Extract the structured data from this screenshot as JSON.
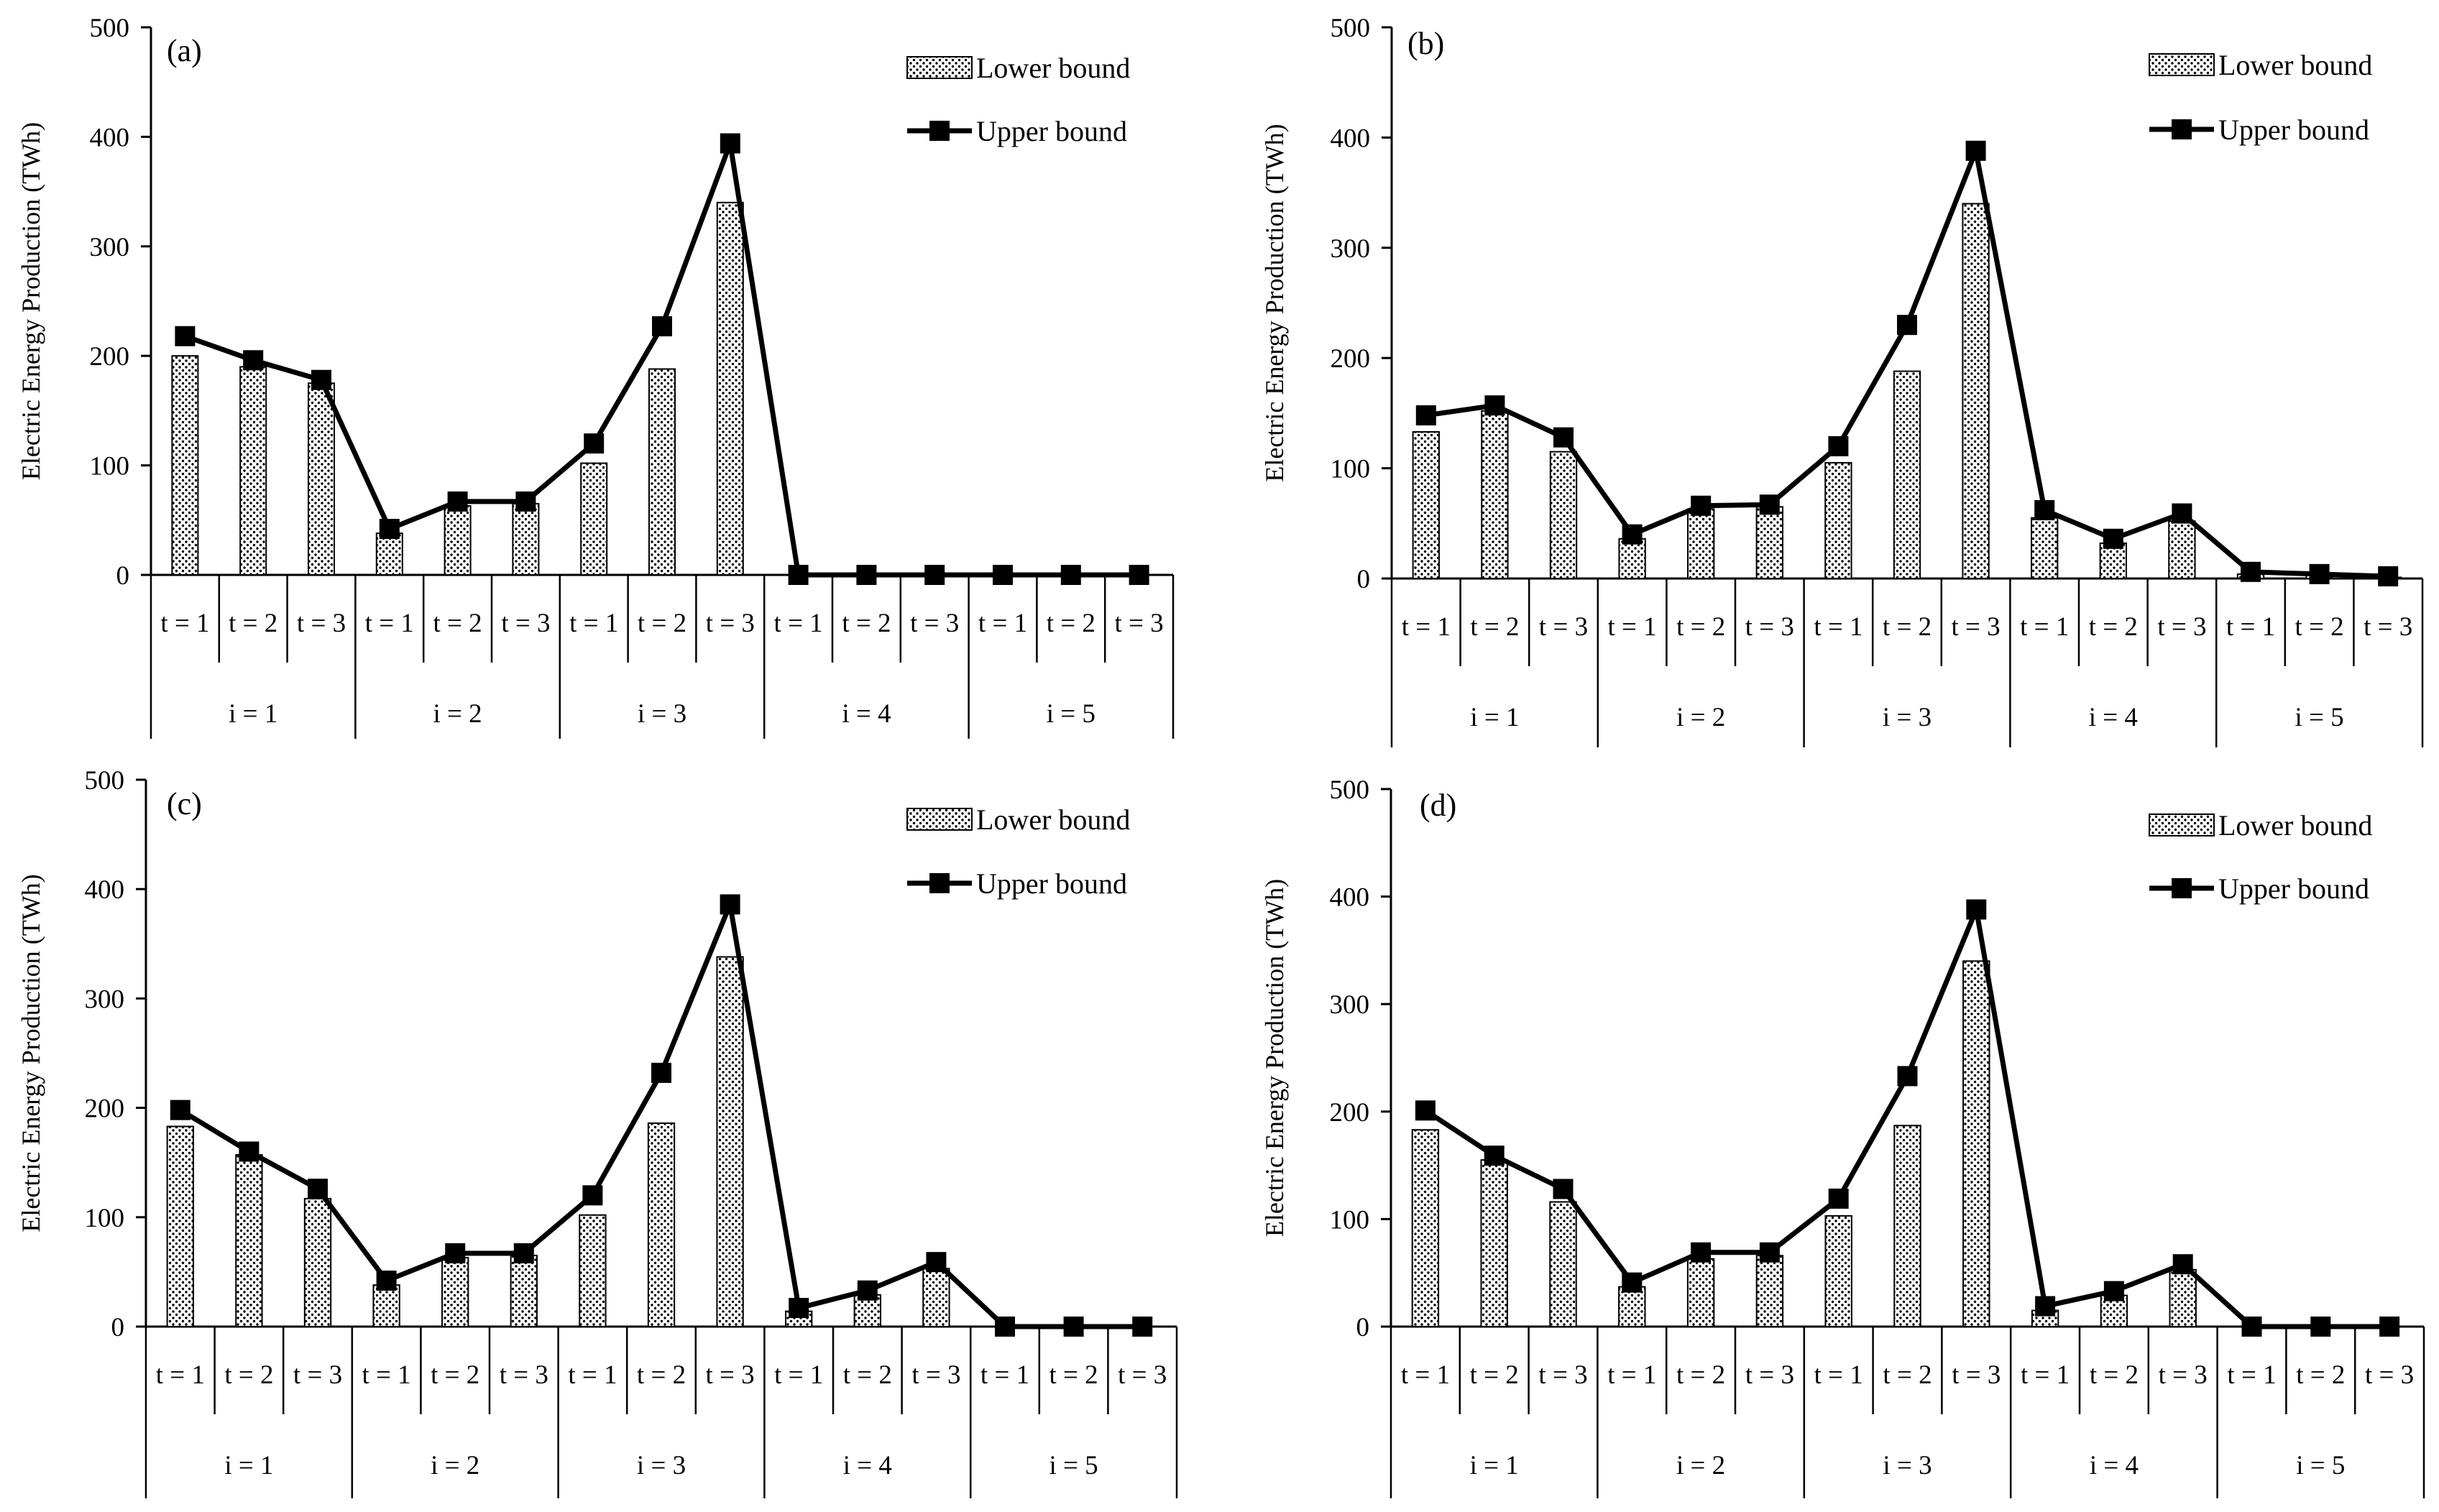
{
  "chart_data": [
    {
      "type": "bar+line",
      "panel_label": "(a)",
      "ylabel": "Electric Energy  Production (TWh)",
      "yticks": [
        0,
        100,
        200,
        300,
        400,
        500
      ],
      "ylim": [
        0,
        500
      ],
      "groups": [
        "i = 1",
        "i = 2",
        "i = 3",
        "i = 4",
        "i = 5"
      ],
      "categories": [
        "t = 1",
        "t = 2",
        "t = 3",
        "t = 1",
        "t = 2",
        "t = 3",
        "t = 1",
        "t = 2",
        "t = 3",
        "t = 1",
        "t = 2",
        "t = 3",
        "t = 1",
        "t = 2",
        "t = 3"
      ],
      "legend": {
        "lower": "Lower bound",
        "upper": "Upper bound"
      },
      "series": [
        {
          "name": "Lower bound",
          "kind": "bar",
          "values": [
            200,
            190,
            175,
            38,
            63,
            65,
            102,
            188,
            340,
            0,
            0,
            0,
            0,
            0,
            0
          ]
        },
        {
          "name": "Upper bound",
          "kind": "line",
          "values": [
            218,
            196,
            178,
            42,
            67,
            67,
            120,
            227,
            394,
            0,
            0,
            0,
            0,
            0,
            0
          ]
        }
      ]
    },
    {
      "type": "bar+line",
      "panel_label": "(b)",
      "ylabel": "Electric Energy  Production (TWh)",
      "yticks": [
        0,
        100,
        200,
        300,
        400,
        500
      ],
      "ylim": [
        0,
        500
      ],
      "groups": [
        "i = 1",
        "i = 2",
        "i = 3",
        "i = 4",
        "i = 5"
      ],
      "categories": [
        "t = 1",
        "t = 2",
        "t = 3",
        "t = 1",
        "t = 2",
        "t = 3",
        "t = 1",
        "t = 2",
        "t = 3",
        "t = 1",
        "t = 2",
        "t = 3",
        "t = 1",
        "t = 2",
        "t = 3"
      ],
      "legend": {
        "lower": "Lower bound",
        "upper": "Upper bound"
      },
      "series": [
        {
          "name": "Lower bound",
          "kind": "bar",
          "values": [
            133,
            152,
            115,
            36,
            63,
            65,
            105,
            188,
            340,
            55,
            32,
            52,
            4,
            3,
            1
          ]
        },
        {
          "name": "Upper bound",
          "kind": "line",
          "values": [
            148,
            157,
            128,
            40,
            66,
            67,
            120,
            230,
            388,
            62,
            36,
            59,
            6,
            4,
            2
          ]
        }
      ]
    },
    {
      "type": "bar+line",
      "panel_label": "(c)",
      "ylabel": "Electric Energy  Production (TWh)",
      "yticks": [
        0,
        100,
        200,
        300,
        400,
        500
      ],
      "ylim": [
        0,
        500
      ],
      "groups": [
        "i = 1",
        "i = 2",
        "i = 3",
        "i = 4",
        "i = 5"
      ],
      "categories": [
        "t = 1",
        "t = 2",
        "t = 3",
        "t = 1",
        "t = 2",
        "t = 3",
        "t = 1",
        "t = 2",
        "t = 3",
        "t = 1",
        "t = 2",
        "t = 3",
        "t = 1",
        "t = 2",
        "t = 3"
      ],
      "legend": {
        "lower": "Lower bound",
        "upper": "Upper bound"
      },
      "series": [
        {
          "name": "Lower bound",
          "kind": "bar",
          "values": [
            183,
            157,
            117,
            38,
            63,
            65,
            102,
            186,
            338,
            14,
            29,
            53,
            0,
            0,
            0
          ]
        },
        {
          "name": "Upper bound",
          "kind": "line",
          "values": [
            198,
            160,
            126,
            42,
            67,
            67,
            120,
            232,
            386,
            17,
            33,
            59,
            0,
            0,
            0
          ]
        }
      ]
    },
    {
      "type": "bar+line",
      "panel_label": "(d)",
      "ylabel": "Electric Energy  Production (TWh)",
      "yticks": [
        0,
        100,
        200,
        300,
        400,
        500
      ],
      "ylim": [
        0,
        500
      ],
      "groups": [
        "i = 1",
        "i = 2",
        "i = 3",
        "i = 4",
        "i = 5"
      ],
      "categories": [
        "t = 1",
        "t = 2",
        "t = 3",
        "t = 1",
        "t = 2",
        "t = 3",
        "t = 1",
        "t = 2",
        "t = 3",
        "t = 1",
        "t = 2",
        "t = 3",
        "t = 1",
        "t = 2",
        "t = 3"
      ],
      "legend": {
        "lower": "Lower bound",
        "upper": "Upper bound"
      },
      "series": [
        {
          "name": "Lower bound",
          "kind": "bar",
          "values": [
            183,
            155,
            116,
            37,
            63,
            66,
            103,
            187,
            340,
            15,
            29,
            53,
            0,
            0,
            0
          ]
        },
        {
          "name": "Upper bound",
          "kind": "line",
          "values": [
            201,
            159,
            128,
            41,
            69,
            69,
            119,
            233,
            388,
            19,
            33,
            58,
            0,
            0,
            0
          ]
        }
      ]
    }
  ]
}
